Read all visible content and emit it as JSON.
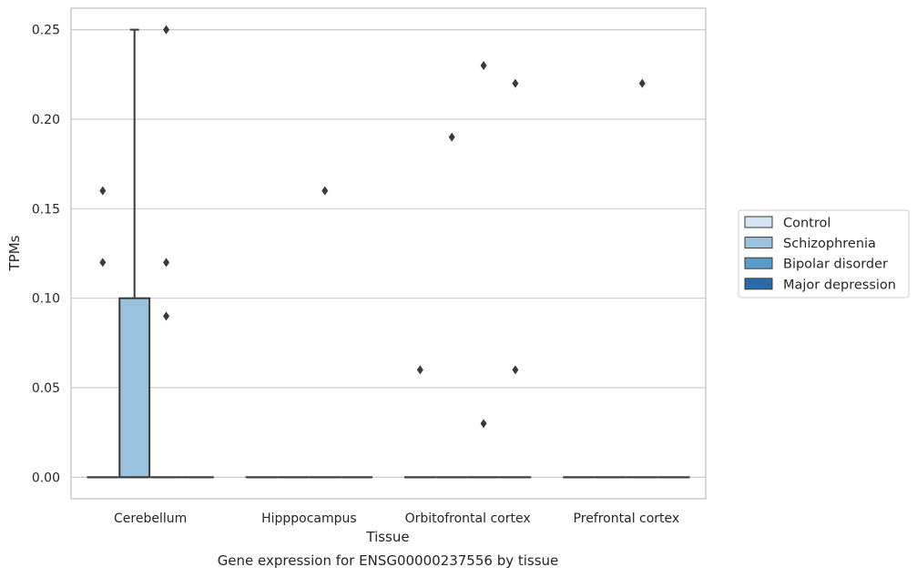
{
  "chart_data": {
    "type": "box",
    "title": "Gene expression for ENSG00000237556 by tissue",
    "xlabel": "Tissue",
    "ylabel": "TPMs",
    "ylim": [
      -0.012,
      0.262
    ],
    "yticks": [
      0.0,
      0.05,
      0.1,
      0.15,
      0.2,
      0.25
    ],
    "ytick_labels": [
      "0.00",
      "0.05",
      "0.10",
      "0.15",
      "0.20",
      "0.25"
    ],
    "grid": true,
    "legend_position": "right",
    "categories": [
      "Cerebellum",
      "Hipppocampus",
      "Orbitofrontal cortex",
      "Prefrontal cortex"
    ],
    "series": [
      {
        "name": "Control",
        "color": "#d3e4f3",
        "boxes": [
          {
            "category": "Cerebellum",
            "q1": 0,
            "median": 0,
            "q3": 0,
            "whisker_low": 0,
            "whisker_high": 0,
            "outliers": [
              0.12,
              0.16
            ]
          },
          {
            "category": "Hipppocampus",
            "q1": 0,
            "median": 0,
            "q3": 0,
            "whisker_low": 0,
            "whisker_high": 0,
            "outliers": []
          },
          {
            "category": "Orbitofrontal cortex",
            "q1": 0,
            "median": 0,
            "q3": 0,
            "whisker_low": 0,
            "whisker_high": 0,
            "outliers": [
              0.06
            ]
          },
          {
            "category": "Prefrontal cortex",
            "q1": 0,
            "median": 0,
            "q3": 0,
            "whisker_low": 0,
            "whisker_high": 0,
            "outliers": []
          }
        ]
      },
      {
        "name": "Schizophrenia",
        "color": "#9ac2dc",
        "boxes": [
          {
            "category": "Cerebellum",
            "q1": 0,
            "median": 0,
            "q3": 0.1,
            "whisker_low": 0,
            "whisker_high": 0.25,
            "outliers": []
          },
          {
            "category": "Hipppocampus",
            "q1": 0,
            "median": 0,
            "q3": 0,
            "whisker_low": 0,
            "whisker_high": 0,
            "outliers": []
          },
          {
            "category": "Orbitofrontal cortex",
            "q1": 0,
            "median": 0,
            "q3": 0,
            "whisker_low": 0,
            "whisker_high": 0,
            "outliers": [
              0.19
            ]
          },
          {
            "category": "Prefrontal cortex",
            "q1": 0,
            "median": 0,
            "q3": 0,
            "whisker_low": 0,
            "whisker_high": 0,
            "outliers": []
          }
        ]
      },
      {
        "name": "Bipolar disorder",
        "color": "#5b9bc8",
        "boxes": [
          {
            "category": "Cerebellum",
            "q1": 0,
            "median": 0,
            "q3": 0,
            "whisker_low": 0,
            "whisker_high": 0,
            "outliers": [
              0.09,
              0.12,
              0.25
            ]
          },
          {
            "category": "Hipppocampus",
            "q1": 0,
            "median": 0,
            "q3": 0,
            "whisker_low": 0,
            "whisker_high": 0,
            "outliers": [
              0.16
            ]
          },
          {
            "category": "Orbitofrontal cortex",
            "q1": 0,
            "median": 0,
            "q3": 0,
            "whisker_low": 0,
            "whisker_high": 0,
            "outliers": [
              0.03,
              0.23
            ]
          },
          {
            "category": "Prefrontal cortex",
            "q1": 0,
            "median": 0,
            "q3": 0,
            "whisker_low": 0,
            "whisker_high": 0,
            "outliers": [
              0.22
            ]
          }
        ]
      },
      {
        "name": "Major depression",
        "color": "#2a6aa8",
        "boxes": [
          {
            "category": "Cerebellum",
            "q1": 0,
            "median": 0,
            "q3": 0,
            "whisker_low": 0,
            "whisker_high": 0,
            "outliers": []
          },
          {
            "category": "Hipppocampus",
            "q1": 0,
            "median": 0,
            "q3": 0,
            "whisker_low": 0,
            "whisker_high": 0,
            "outliers": []
          },
          {
            "category": "Orbitofrontal cortex",
            "q1": 0,
            "median": 0,
            "q3": 0,
            "whisker_low": 0,
            "whisker_high": 0,
            "outliers": [
              0.06,
              0.22
            ]
          },
          {
            "category": "Prefrontal cortex",
            "q1": 0,
            "median": 0,
            "q3": 0,
            "whisker_low": 0,
            "whisker_high": 0,
            "outliers": []
          }
        ]
      }
    ]
  }
}
